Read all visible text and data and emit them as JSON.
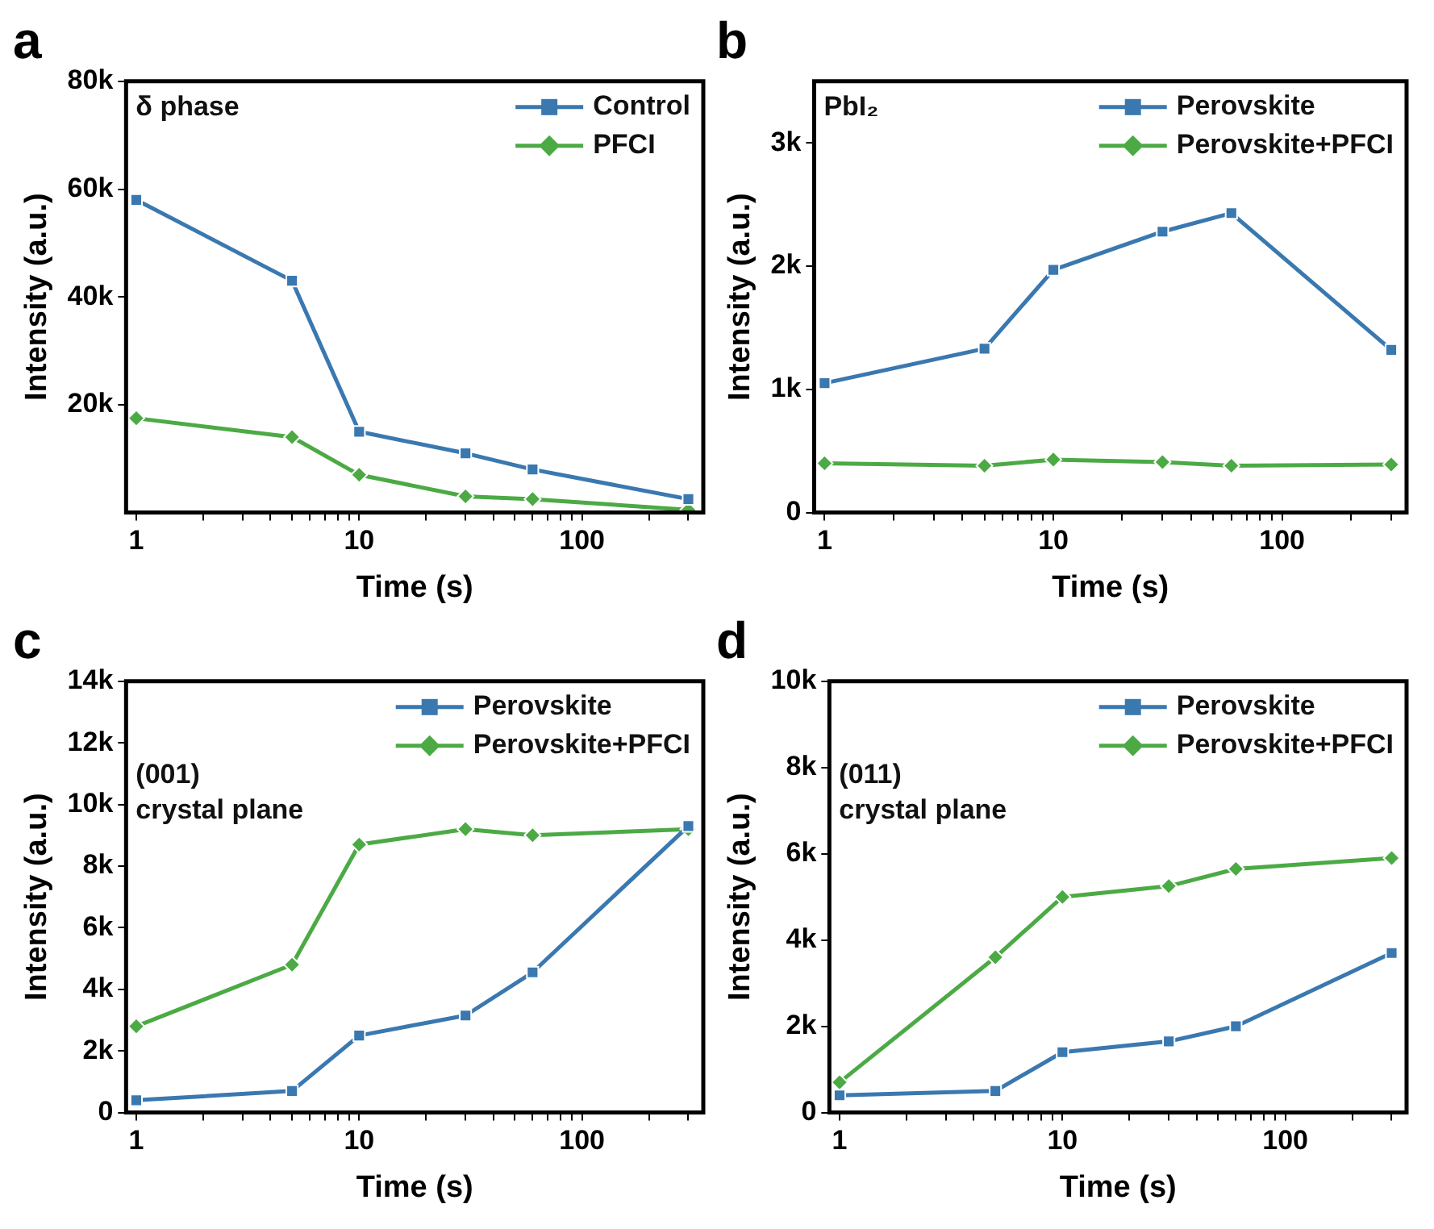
{
  "chart_data": [
    {
      "type": "line",
      "title": "a",
      "xlabel": "Time (s)",
      "ylabel": "Intensity (a.u.)",
      "annotations": [
        "δ phase"
      ],
      "x": [
        1,
        5,
        10,
        30,
        60,
        300
      ],
      "xlim": [
        0.9,
        350
      ],
      "xticks": [
        1,
        {
          "value": 2,
          "label": null
        },
        {
          "value": 3,
          "label": null
        },
        {
          "value": 4,
          "label": null
        },
        {
          "value": 5,
          "label": null
        },
        {
          "value": 6,
          "label": null
        },
        {
          "value": 7,
          "label": null
        },
        {
          "value": 8,
          "label": null
        },
        {
          "value": 9,
          "label": null
        },
        10,
        {
          "value": 20,
          "label": null
        },
        {
          "value": 30,
          "label": null
        },
        {
          "value": 40,
          "label": null
        },
        {
          "value": 50,
          "label": null
        },
        {
          "value": 60,
          "label": null
        },
        {
          "value": 70,
          "label": null
        },
        {
          "value": 80,
          "label": null
        },
        {
          "value": 90,
          "label": null
        },
        100,
        {
          "value": 200,
          "label": null
        },
        {
          "value": 300,
          "label": null
        }
      ],
      "log": "x",
      "ylim": [
        0,
        80000
      ],
      "yticks": [
        {
          "value": 20000,
          "label": "20k"
        },
        {
          "value": 40000,
          "label": "40k"
        },
        {
          "value": 60000,
          "label": "60k"
        },
        {
          "value": 80000,
          "label": "80k"
        }
      ],
      "grid": false,
      "legend": "top right",
      "series": [
        {
          "name": "Control",
          "color": "#3a78b0",
          "marker": "square",
          "values": [
            58000,
            43000,
            15000,
            11000,
            8000,
            2500
          ]
        },
        {
          "name": "PFCI",
          "color": "#4caa45",
          "marker": "diamond",
          "values": [
            17500,
            14000,
            7000,
            3000,
            2500,
            500
          ]
        }
      ]
    },
    {
      "type": "line",
      "title": "b",
      "xlabel": "Time (s)",
      "ylabel": "Intensity (a.u.)",
      "annotations": [
        "PbI₂"
      ],
      "x": [
        1,
        5,
        10,
        30,
        60,
        300
      ],
      "xlim": [
        0.9,
        350
      ],
      "xticks": [
        1,
        {
          "value": 2,
          "label": null
        },
        {
          "value": 3,
          "label": null
        },
        {
          "value": 4,
          "label": null
        },
        {
          "value": 5,
          "label": null
        },
        {
          "value": 6,
          "label": null
        },
        {
          "value": 7,
          "label": null
        },
        {
          "value": 8,
          "label": null
        },
        {
          "value": 9,
          "label": null
        },
        10,
        {
          "value": 20,
          "label": null
        },
        {
          "value": 30,
          "label": null
        },
        {
          "value": 40,
          "label": null
        },
        {
          "value": 50,
          "label": null
        },
        {
          "value": 60,
          "label": null
        },
        {
          "value": 70,
          "label": null
        },
        {
          "value": 80,
          "label": null
        },
        {
          "value": 90,
          "label": null
        },
        100,
        {
          "value": 200,
          "label": null
        },
        {
          "value": 300,
          "label": null
        }
      ],
      "log": "x",
      "ylim": [
        0,
        3500
      ],
      "yticks": [
        {
          "value": 0,
          "label": "0"
        },
        {
          "value": 1000,
          "label": "1k"
        },
        {
          "value": 2000,
          "label": "2k"
        },
        {
          "value": 3000,
          "label": "3k"
        }
      ],
      "grid": false,
      "legend": "top right",
      "series": [
        {
          "name": "Perovskite",
          "color": "#3a78b0",
          "marker": "square",
          "values": [
            1050,
            1330,
            1970,
            2280,
            2430,
            1320
          ]
        },
        {
          "name": "Perovskite+PFCI",
          "color": "#4caa45",
          "marker": "diamond",
          "values": [
            400,
            380,
            430,
            410,
            380,
            390
          ]
        }
      ]
    },
    {
      "type": "line",
      "title": "c",
      "xlabel": "Time (s)",
      "ylabel": "Intensity (a.u.)",
      "annotations": [
        "(001)",
        "crystal plane"
      ],
      "x": [
        1,
        5,
        10,
        30,
        60,
        300
      ],
      "xlim": [
        0.9,
        350
      ],
      "xticks": [
        1,
        {
          "value": 2,
          "label": null
        },
        {
          "value": 3,
          "label": null
        },
        {
          "value": 4,
          "label": null
        },
        {
          "value": 5,
          "label": null
        },
        {
          "value": 6,
          "label": null
        },
        {
          "value": 7,
          "label": null
        },
        {
          "value": 8,
          "label": null
        },
        {
          "value": 9,
          "label": null
        },
        10,
        {
          "value": 20,
          "label": null
        },
        {
          "value": 30,
          "label": null
        },
        {
          "value": 40,
          "label": null
        },
        {
          "value": 50,
          "label": null
        },
        {
          "value": 60,
          "label": null
        },
        {
          "value": 70,
          "label": null
        },
        {
          "value": 80,
          "label": null
        },
        {
          "value": 90,
          "label": null
        },
        100,
        {
          "value": 200,
          "label": null
        },
        {
          "value": 300,
          "label": null
        }
      ],
      "log": "x",
      "ylim": [
        0,
        14000
      ],
      "yticks": [
        {
          "value": 0,
          "label": "0"
        },
        {
          "value": 2000,
          "label": "2k"
        },
        {
          "value": 4000,
          "label": "4k"
        },
        {
          "value": 6000,
          "label": "6k"
        },
        {
          "value": 8000,
          "label": "8k"
        },
        {
          "value": 10000,
          "label": "10k"
        },
        {
          "value": 12000,
          "label": "12k"
        },
        {
          "value": 14000,
          "label": "14k"
        }
      ],
      "grid": false,
      "legend": "top right",
      "series": [
        {
          "name": "Perovskite",
          "color": "#3a78b0",
          "marker": "square",
          "values": [
            400,
            700,
            2500,
            3150,
            4550,
            9300
          ]
        },
        {
          "name": "Perovskite+PFCI",
          "color": "#4caa45",
          "marker": "diamond",
          "values": [
            2800,
            4800,
            8700,
            9200,
            9000,
            9200
          ]
        }
      ]
    },
    {
      "type": "line",
      "title": "d",
      "xlabel": "Time (s)",
      "ylabel": "Intensity (a.u.)",
      "annotations": [
        "(011)",
        "crystal plane"
      ],
      "x": [
        1,
        5,
        10,
        30,
        60,
        300
      ],
      "xlim": [
        0.9,
        350
      ],
      "xticks": [
        1,
        {
          "value": 2,
          "label": null
        },
        {
          "value": 3,
          "label": null
        },
        {
          "value": 4,
          "label": null
        },
        {
          "value": 5,
          "label": null
        },
        {
          "value": 6,
          "label": null
        },
        {
          "value": 7,
          "label": null
        },
        {
          "value": 8,
          "label": null
        },
        {
          "value": 9,
          "label": null
        },
        10,
        {
          "value": 20,
          "label": null
        },
        {
          "value": 30,
          "label": null
        },
        {
          "value": 40,
          "label": null
        },
        {
          "value": 50,
          "label": null
        },
        {
          "value": 60,
          "label": null
        },
        {
          "value": 70,
          "label": null
        },
        {
          "value": 80,
          "label": null
        },
        {
          "value": 90,
          "label": null
        },
        100,
        {
          "value": 200,
          "label": null
        },
        {
          "value": 300,
          "label": null
        }
      ],
      "log": "x",
      "ylim": [
        0,
        10000
      ],
      "yticks": [
        {
          "value": 0,
          "label": "0"
        },
        {
          "value": 2000,
          "label": "2k"
        },
        {
          "value": 4000,
          "label": "4k"
        },
        {
          "value": 6000,
          "label": "6k"
        },
        {
          "value": 8000,
          "label": "8k"
        },
        {
          "value": 10000,
          "label": "10k"
        }
      ],
      "grid": false,
      "legend": "top right",
      "series": [
        {
          "name": "Perovskite",
          "color": "#3a78b0",
          "marker": "square",
          "values": [
            400,
            500,
            1400,
            1650,
            2000,
            3700
          ]
        },
        {
          "name": "Perovskite+PFCI",
          "color": "#4caa45",
          "marker": "diamond",
          "values": [
            700,
            3600,
            5000,
            5250,
            5650,
            5900
          ]
        }
      ]
    }
  ]
}
